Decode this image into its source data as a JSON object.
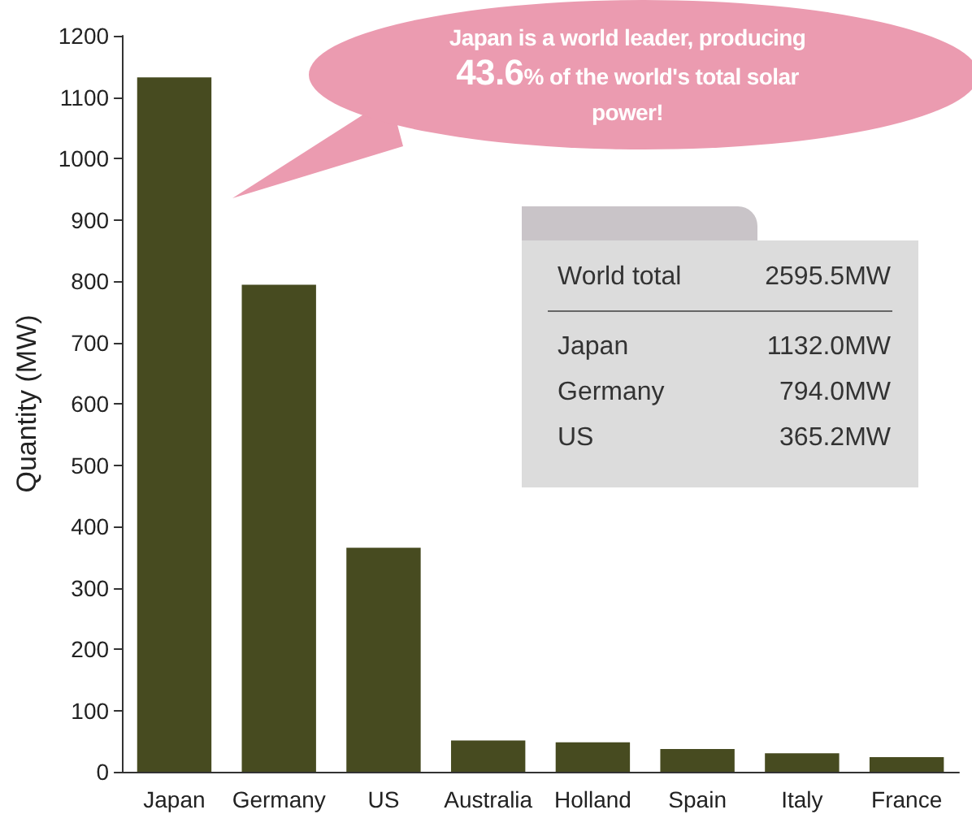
{
  "chart_data": {
    "type": "bar",
    "ylabel": "Quantity (MW)",
    "categories": [
      "Japan",
      "Germany",
      "US",
      "Australia",
      "Holland",
      "Spain",
      "Italy",
      "France"
    ],
    "values": [
      1132.0,
      794.0,
      365.2,
      51,
      48,
      37,
      30,
      24
    ],
    "color": "#474b20",
    "ylim": [
      0,
      1200
    ],
    "yticks": [
      0,
      100,
      200,
      300,
      400,
      500,
      600,
      700,
      800,
      900,
      1000,
      1100,
      1200
    ],
    "grid": false,
    "annotations": [
      "Japan is a world leader, producing 43.6% of the world's total solar power!",
      "World total",
      "2595.5MW",
      "Japan",
      "1132.0MW",
      "Germany",
      "794.0MW",
      "US",
      "365.2MW"
    ]
  }
}
